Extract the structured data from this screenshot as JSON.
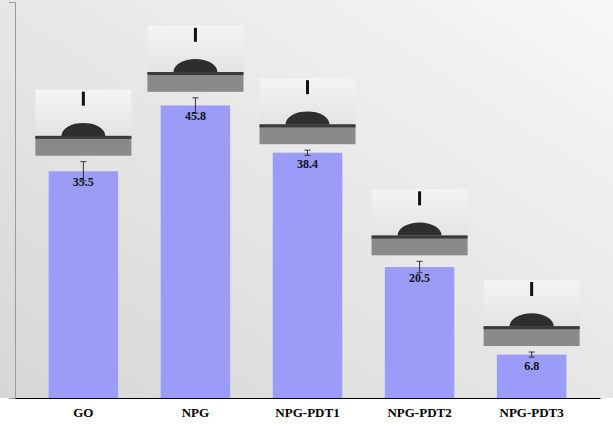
{
  "chart_data": {
    "type": "bar",
    "categories": [
      "GO",
      "NPG",
      "NPG-PDT1",
      "NPG-PDT2",
      "NPG-PDT3"
    ],
    "values": [
      35.5,
      45.8,
      38.4,
      20.5,
      6.8
    ],
    "errors": [
      1.5,
      1.2,
      0.4,
      0.9,
      0.4
    ],
    "color": "#9b9cf7",
    "ylim": [
      0,
      62
    ],
    "yticks": [],
    "grid": false,
    "data_labels": true,
    "tick_labels": "x"
  }
}
